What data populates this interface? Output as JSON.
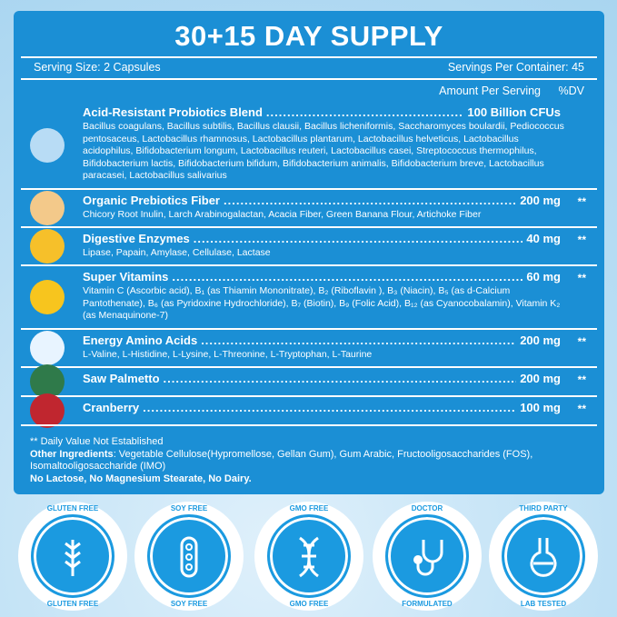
{
  "title": "30+15 DAY SUPPLY",
  "serving_size": "Serving Size: 2 Capsules",
  "servings_per_container": "Servings Per Container: 45",
  "amount_header": "Amount Per Serving",
  "dv_header": "%DV",
  "colors": {
    "panel": "#1b8fd5",
    "badge": "#1b9ae0"
  },
  "rows": [
    {
      "name": "Acid-Resistant Probiotics Blend",
      "amount": "100 Billion CFUs",
      "dv": "",
      "icon": "probiotic-bacteria-icon",
      "desc": "Bacillus coagulans, Bacillus subtilis, Bacillus clausii, Bacillus licheniformis, Saccharomyces boulardii, Pediococcus pentosaceus, Lactobacillus rhamnosus, Lactobacillus plantarum, Lactobacillus helveticus, Lactobacillus acidophilus, Bifidobacterium longum, Lactobacillus reuteri, Lactobacillus casei, Streptococcus thermophilus, Bifidobacterium lactis, Bifidobacterium bifidum, Bifidobacterium animalis, Bifidobacterium breve, Lactobacillus paracasei, Lactobacillus salivarius"
    },
    {
      "name": "Organic Prebiotics Fiber",
      "amount": "200 mg",
      "dv": "**",
      "icon": "fiber-icon",
      "desc": "Chicory Root Inulin, Larch Arabinogalactan, Acacia Fiber, Green Banana Flour, Artichoke Fiber"
    },
    {
      "name": "Digestive Enzymes",
      "amount": "40 mg",
      "dv": "**",
      "icon": "enzyme-icon",
      "desc": "Lipase, Papain, Amylase, Cellulase, Lactase"
    },
    {
      "name": "Super Vitamins",
      "amount": "60 mg",
      "dv": "**",
      "icon": "vitamin-c-icon",
      "desc": "Vitamin C (Ascorbic acid), B₁ (as Thiamin Mononitrate), B₂ (Riboflavin ), B₃ (Niacin), B₅ (as d-Calcium Pantothenate), B₆ (as Pyridoxine Hydrochloride), B₇ (Biotin), B₉ (Folic Acid), B₁₂ (as Cyanocobalamin), Vitamin K₂ (as Menaquinone-7)"
    },
    {
      "name": "Energy Amino Acids",
      "amount": "200 mg",
      "dv": "**",
      "icon": "molecule-icon",
      "desc": "L-Valine, L-Histidine, L-Lysine, L-Threonine,  L-Tryptophan, L-Taurine"
    },
    {
      "name": "Saw Palmetto",
      "amount": "200 mg",
      "dv": "**",
      "icon": "palm-leaf-icon",
      "desc": ""
    },
    {
      "name": "Cranberry",
      "amount": "100 mg",
      "dv": "**",
      "icon": "cranberry-icon",
      "desc": ""
    }
  ],
  "footer": {
    "daily_value_note": "** Daily Value Not Established",
    "other_label": "Other Ingredients",
    "other_text": ": Vegetable Cellulose(Hypromellose, Gellan Gum), Gum Arabic, Fructooligosaccharides (FOS), Isomaltooligosaccharide (IMO)",
    "free_from": "No Lactose, No Magnesium Stearate, No Dairy."
  },
  "badges": [
    {
      "top": "GLUTEN FREE",
      "bottom": "GLUTEN FREE",
      "icon": "wheat-icon"
    },
    {
      "top": "SOY FREE",
      "bottom": "SOY FREE",
      "icon": "soybean-icon"
    },
    {
      "top": "GMO FREE",
      "bottom": "GMO FREE",
      "icon": "dna-icon"
    },
    {
      "top": "DOCTOR",
      "bottom": "FORMULATED",
      "icon": "stethoscope-icon"
    },
    {
      "top": "THIRD PARTY",
      "bottom": "LAB TESTED",
      "icon": "flask-icon"
    }
  ]
}
